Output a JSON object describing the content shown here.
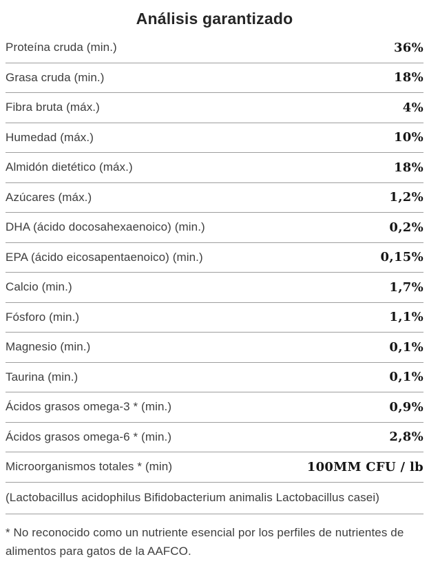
{
  "title": "Análisis garantizado",
  "colors": {
    "background": "#ffffff",
    "title_text": "#262626",
    "label_text": "#3d3d3d",
    "value_text": "#161616",
    "divider": "#9d9d9d"
  },
  "table": {
    "rows": [
      {
        "label": "Proteína cruda (min.)",
        "value": "36%"
      },
      {
        "label": "Grasa cruda (min.)",
        "value": "18%"
      },
      {
        "label": "Fibra bruta (máx.)",
        "value": "4%"
      },
      {
        "label": "Humedad (máx.)",
        "value": "10%"
      },
      {
        "label": "Almidón dietético (máx.)",
        "value": "18%"
      },
      {
        "label": "Azúcares (máx.)",
        "value": "1,2%"
      },
      {
        "label": "DHA (ácido docosahexaenoico) (min.)",
        "value": "0,2%"
      },
      {
        "label": "EPA (ácido eicosapentaenoico) (min.)",
        "value": "0,15%"
      },
      {
        "label": "Calcio (min.)",
        "value": "1,7%"
      },
      {
        "label": "Fósforo (min.)",
        "value": "1,1%"
      },
      {
        "label": "Magnesio (min.)",
        "value": "0,1%"
      },
      {
        "label": "Taurina (min.)",
        "value": "0,1%"
      },
      {
        "label": "Ácidos grasos omega-3 * (min.)",
        "value": "0,9%"
      },
      {
        "label": "Ácidos grasos omega-6 * (min.)",
        "value": "2,8%"
      },
      {
        "label": "Microorganismos totales * (min)",
        "value": "100MM CFU / lb"
      }
    ],
    "note_row": "(Lactobacillus acidophilus Bifidobacterium animalis Lactobacillus casei)",
    "footnote": "* No reconocido como un nutriente esencial por los perfiles de nutrientes de alimentos para gatos de la AAFCO."
  }
}
